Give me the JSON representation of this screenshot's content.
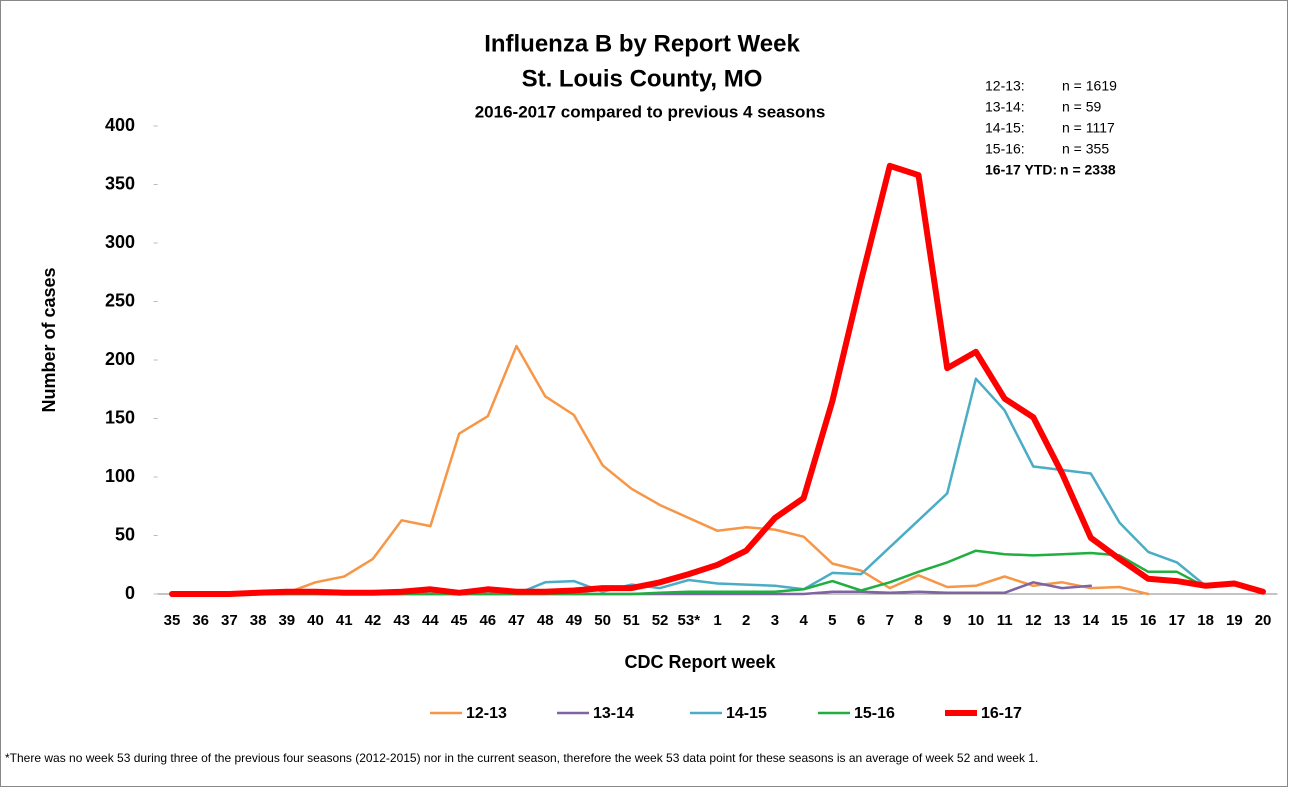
{
  "chart_data": {
    "type": "line",
    "title": "Influenza B by Report Week",
    "subtitle": "St. Louis County, MO",
    "subtitle2": "2016-2017 compared to previous 4 seasons",
    "x_label": "CDC Report week",
    "y_label": "Number of cases",
    "categories": [
      "35",
      "36",
      "37",
      "38",
      "39",
      "40",
      "41",
      "42",
      "43",
      "44",
      "45",
      "46",
      "47",
      "48",
      "49",
      "50",
      "51",
      "52",
      "53*",
      "1",
      "2",
      "3",
      "4",
      "5",
      "6",
      "7",
      "8",
      "9",
      "10",
      "11",
      "12",
      "13",
      "14",
      "15",
      "16",
      "17",
      "18",
      "19",
      "20"
    ],
    "ylim": [
      0,
      400
    ],
    "yticks": [
      0,
      50,
      100,
      150,
      200,
      250,
      300,
      350,
      400
    ],
    "grid": false,
    "legend": "bottom",
    "series": [
      {
        "name": "12-13",
        "color": "#f79646",
        "width": 2.5,
        "values": [
          0,
          0,
          0,
          0,
          1,
          10,
          15,
          30,
          63,
          58,
          137,
          152,
          212,
          169,
          153,
          110,
          90,
          76,
          65,
          54,
          57,
          55,
          49,
          26,
          20,
          5,
          16,
          6,
          7,
          15,
          7,
          10,
          5,
          6,
          0,
          null,
          null,
          null,
          null
        ]
      },
      {
        "name": "13-14",
        "color": "#8064a2",
        "width": 2.5,
        "values": [
          0,
          0,
          0,
          0,
          0,
          0,
          0,
          0,
          0,
          0,
          0,
          0,
          0,
          0,
          0,
          0,
          0,
          0,
          0,
          0,
          0,
          0,
          0,
          2,
          2,
          1,
          2,
          1,
          1,
          1,
          10,
          5,
          7,
          null,
          null,
          null,
          null,
          null,
          null
        ]
      },
      {
        "name": "14-15",
        "color": "#4bacc6",
        "width": 2.5,
        "values": [
          0,
          0,
          0,
          0,
          0,
          0,
          0,
          0,
          0,
          0,
          0,
          0,
          0,
          10,
          11,
          2,
          8,
          5,
          12,
          9,
          8,
          7,
          4,
          18,
          17,
          40,
          63,
          86,
          184,
          157,
          109,
          106,
          103,
          61,
          36,
          27,
          7,
          null,
          null
        ]
      },
      {
        "name": "15-16",
        "color": "#1fae3f",
        "width": 2.5,
        "values": [
          0,
          0,
          0,
          0,
          0,
          0,
          0,
          0,
          0,
          0,
          0,
          0,
          0,
          0,
          0,
          0,
          0,
          1,
          2,
          2,
          2,
          2,
          4,
          11,
          3,
          10,
          19,
          27,
          37,
          34,
          33,
          34,
          35,
          33,
          19,
          19,
          6,
          null,
          null
        ]
      },
      {
        "name": "16-17",
        "color": "#ff0000",
        "width": 6,
        "values": [
          0,
          0,
          0,
          1,
          2,
          2,
          1,
          1,
          2,
          4,
          1,
          4,
          2,
          2,
          3,
          5,
          5,
          10,
          17,
          25,
          37,
          65,
          82,
          165,
          268,
          366,
          358,
          193,
          207,
          167,
          151,
          103,
          48,
          30,
          13,
          11,
          7,
          9,
          2
        ]
      }
    ],
    "annotations": [
      {
        "label": "12-13:",
        "text": "n = 1619"
      },
      {
        "label": "13-14:",
        "text": "n = 59"
      },
      {
        "label": "14-15:",
        "text": "n = 1117"
      },
      {
        "label": "15-16:",
        "text": "n = 355"
      },
      {
        "label": "16-17 YTD:",
        "text": "n = 2338"
      }
    ],
    "footnote": "*There was no week 53 during three of the previous four seasons (2012-2015) nor in the current season, therefore the week 53 data point for these seasons is an average of week 52 and week 1."
  }
}
